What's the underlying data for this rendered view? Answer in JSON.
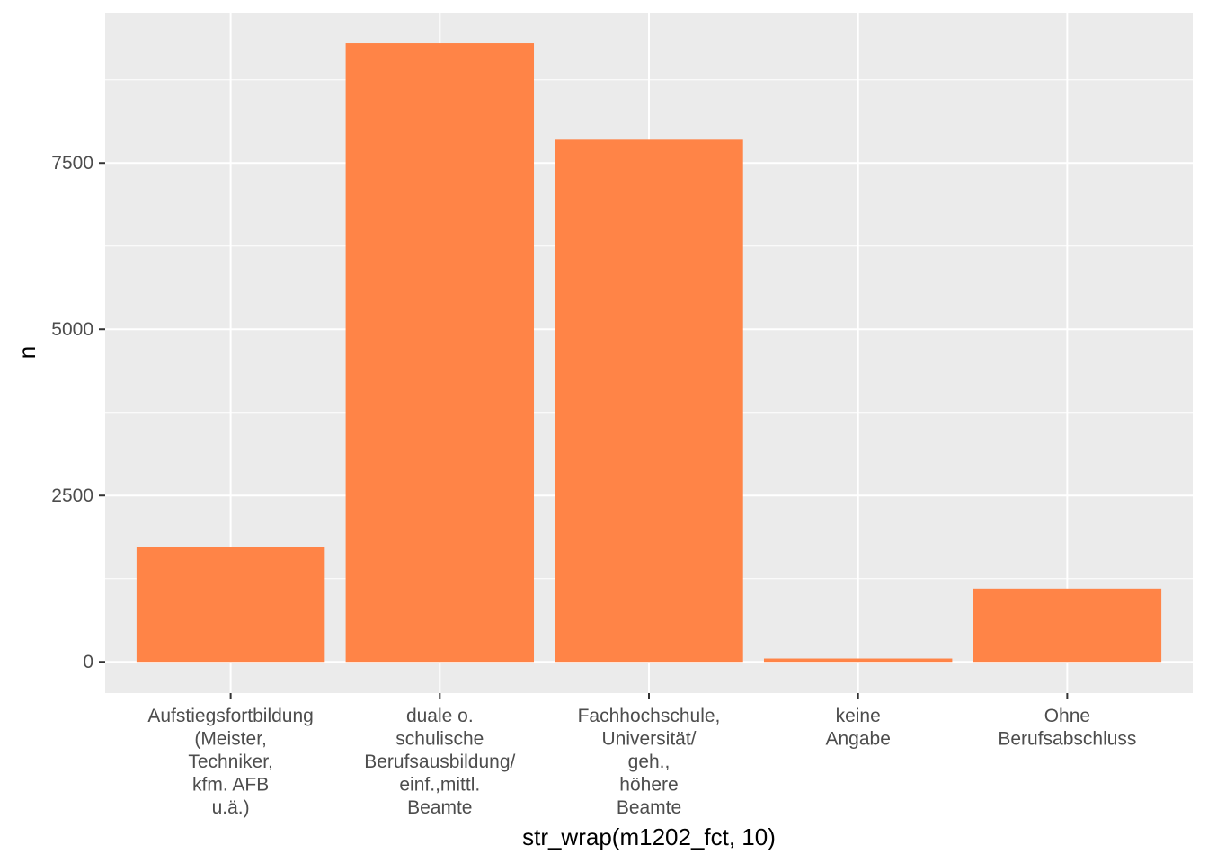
{
  "chart_data": {
    "type": "bar",
    "xlabel": "str_wrap(m1202_fct, 10)",
    "ylabel": "n",
    "categories": [
      [
        "Aufstiegsfortbildung",
        "(Meister,",
        "Techniker,",
        "kfm. AFB",
        "u.ä.)"
      ],
      [
        "duale o.",
        "schulische",
        "Berufsausbildung/",
        "einf.,mittl.",
        "Beamte"
      ],
      [
        "Fachhochschule,",
        "Universität/",
        "geh.,",
        "höhere",
        "Beamte"
      ],
      [
        "keine",
        "Angabe"
      ],
      [
        "Ohne",
        "Berufsabschluss"
      ]
    ],
    "values": [
      1730,
      9300,
      7850,
      50,
      1100
    ],
    "yticks": [
      0,
      2500,
      5000,
      7500
    ],
    "ylim": [
      -470,
      9760
    ],
    "grid": true,
    "colors": {
      "bar": "#FF8447",
      "panel": "#EBEBEB",
      "grid": "#FFFFFF",
      "tick_text": "#4D4D4D",
      "axis_title": "#000000"
    }
  }
}
